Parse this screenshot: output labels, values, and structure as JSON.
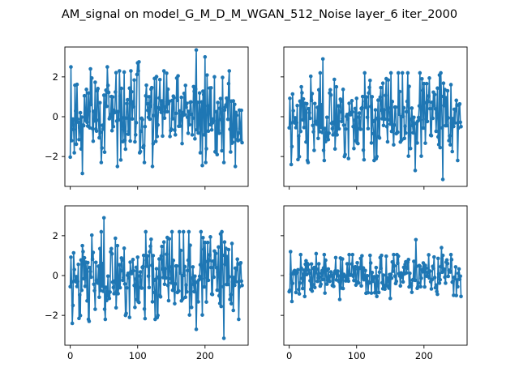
{
  "figure": {
    "title": "AM_signal on model_G_M_D_M_WGAN_512_Noise layer_6 iter_2000",
    "series_color": "#1f77b4"
  },
  "chart_data": [
    {
      "type": "line",
      "panel": "top-left",
      "xlim": [
        -8,
        264
      ],
      "ylim": [
        -3.5,
        3.5
      ],
      "xticks": [
        0,
        100,
        200
      ],
      "xtick_labels_visible": false,
      "yticks": [
        -2,
        0,
        2
      ],
      "ytick_labels": [
        "−2",
        "0",
        "2"
      ],
      "ytick_labels_visible": true,
      "marker": "dot",
      "seed": 11,
      "amplitude": 1.2,
      "peaks": [
        {
          "x": 1,
          "y": 2.5
        },
        {
          "x": 15,
          "y": 0.2
        },
        {
          "x": 18,
          "y": -2.85
        },
        {
          "x": 30,
          "y": 2.4
        },
        {
          "x": 55,
          "y": 2.5
        },
        {
          "x": 70,
          "y": -2.5
        },
        {
          "x": 100,
          "y": 2.7
        },
        {
          "x": 102,
          "y": 2.75
        },
        {
          "x": 122,
          "y": -2.5
        },
        {
          "x": 187,
          "y": 3.35
        },
        {
          "x": 200,
          "y": 3.0
        },
        {
          "x": 196,
          "y": -2.45
        },
        {
          "x": 245,
          "y": -2.5
        },
        {
          "x": 255,
          "y": -1.3
        }
      ]
    },
    {
      "type": "line",
      "panel": "top-right",
      "xlim": [
        -8,
        264
      ],
      "ylim": [
        -3.5,
        3.5
      ],
      "xticks": [
        0,
        100,
        200
      ],
      "xtick_labels_visible": false,
      "yticks": [
        -2,
        0,
        2
      ],
      "ytick_labels_visible": false,
      "marker": "dot",
      "seed": 23,
      "amplitude": 1.15,
      "peaks": [
        {
          "x": 3,
          "y": -2.4
        },
        {
          "x": 18,
          "y": 1.5
        },
        {
          "x": 28,
          "y": -2.3
        },
        {
          "x": 50,
          "y": 2.9
        },
        {
          "x": 88,
          "y": -2.1
        },
        {
          "x": 112,
          "y": 2.2
        },
        {
          "x": 130,
          "y": -2.0
        },
        {
          "x": 197,
          "y": 1.9
        },
        {
          "x": 187,
          "y": -2.7
        },
        {
          "x": 228,
          "y": -3.15
        },
        {
          "x": 255,
          "y": -0.5
        }
      ]
    },
    {
      "type": "line",
      "panel": "bottom-left",
      "xlim": [
        -8,
        264
      ],
      "ylim": [
        -3.5,
        3.5
      ],
      "xticks": [
        0,
        100,
        200
      ],
      "xtick_labels": [
        "0",
        "100",
        "200"
      ],
      "xtick_labels_visible": true,
      "yticks": [
        -2,
        0,
        2
      ],
      "ytick_labels": [
        "−2",
        "0",
        "2"
      ],
      "ytick_labels_visible": true,
      "marker": "dot",
      "seed": 23,
      "amplitude": 1.15,
      "peaks": [
        {
          "x": 3,
          "y": -2.4
        },
        {
          "x": 18,
          "y": 1.5
        },
        {
          "x": 28,
          "y": -2.3
        },
        {
          "x": 50,
          "y": 2.9
        },
        {
          "x": 88,
          "y": -2.1
        },
        {
          "x": 112,
          "y": 2.2
        },
        {
          "x": 130,
          "y": -2.0
        },
        {
          "x": 197,
          "y": 1.9
        },
        {
          "x": 187,
          "y": -2.7
        },
        {
          "x": 228,
          "y": -3.15
        },
        {
          "x": 255,
          "y": -0.5
        }
      ]
    },
    {
      "type": "line",
      "panel": "bottom-right",
      "xlim": [
        -8,
        264
      ],
      "ylim": [
        -3.5,
        3.5
      ],
      "xticks": [
        0,
        100,
        200
      ],
      "xtick_labels": [
        "0",
        "100",
        "200"
      ],
      "xtick_labels_visible": true,
      "yticks": [
        -2,
        0,
        2
      ],
      "ytick_labels_visible": false,
      "marker": "dot",
      "seed": 37,
      "amplitude": 0.55,
      "peaks": [
        {
          "x": 2,
          "y": 1.2
        },
        {
          "x": 4,
          "y": -1.3
        },
        {
          "x": 40,
          "y": 1.1
        },
        {
          "x": 75,
          "y": -1.2
        },
        {
          "x": 150,
          "y": -1.15
        },
        {
          "x": 188,
          "y": 1.8
        },
        {
          "x": 226,
          "y": 1.4
        },
        {
          "x": 248,
          "y": -1.0
        }
      ]
    }
  ]
}
